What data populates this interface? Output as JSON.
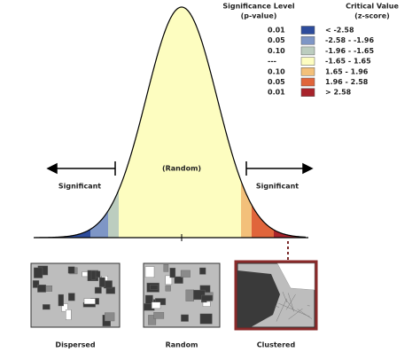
{
  "legend": {
    "significance_title": "Significance Level",
    "significance_subtitle": "(p-value)",
    "critical_title": "Critical Value",
    "critical_subtitle": "(z-score)",
    "rows": [
      {
        "p_value": "0.01",
        "z_score": "< -2.58",
        "color": "#2d4c9c"
      },
      {
        "p_value": "0.05",
        "z_score": "-2.58 - -1.96",
        "color": "#7e96c6"
      },
      {
        "p_value": "0.10",
        "z_score": "-1.96 - -1.65",
        "color": "#bccdbf"
      },
      {
        "p_value": "---",
        "z_score": "-1.65 - 1.65",
        "color": "#fdfdc0"
      },
      {
        "p_value": "0.10",
        "z_score": "1.65 - 1.96",
        "color": "#f3c07a"
      },
      {
        "p_value": "0.05",
        "z_score": "1.96 - 2.58",
        "color": "#e0653b"
      },
      {
        "p_value": "0.01",
        "z_score": "> 2.58",
        "color": "#a8232b"
      }
    ]
  },
  "curve": {
    "center_label": "(Random)",
    "left_label": "Significant",
    "right_label": "Significant"
  },
  "maps": [
    {
      "label": "Dispersed"
    },
    {
      "label": "Random"
    },
    {
      "label": "Clustered"
    }
  ]
}
